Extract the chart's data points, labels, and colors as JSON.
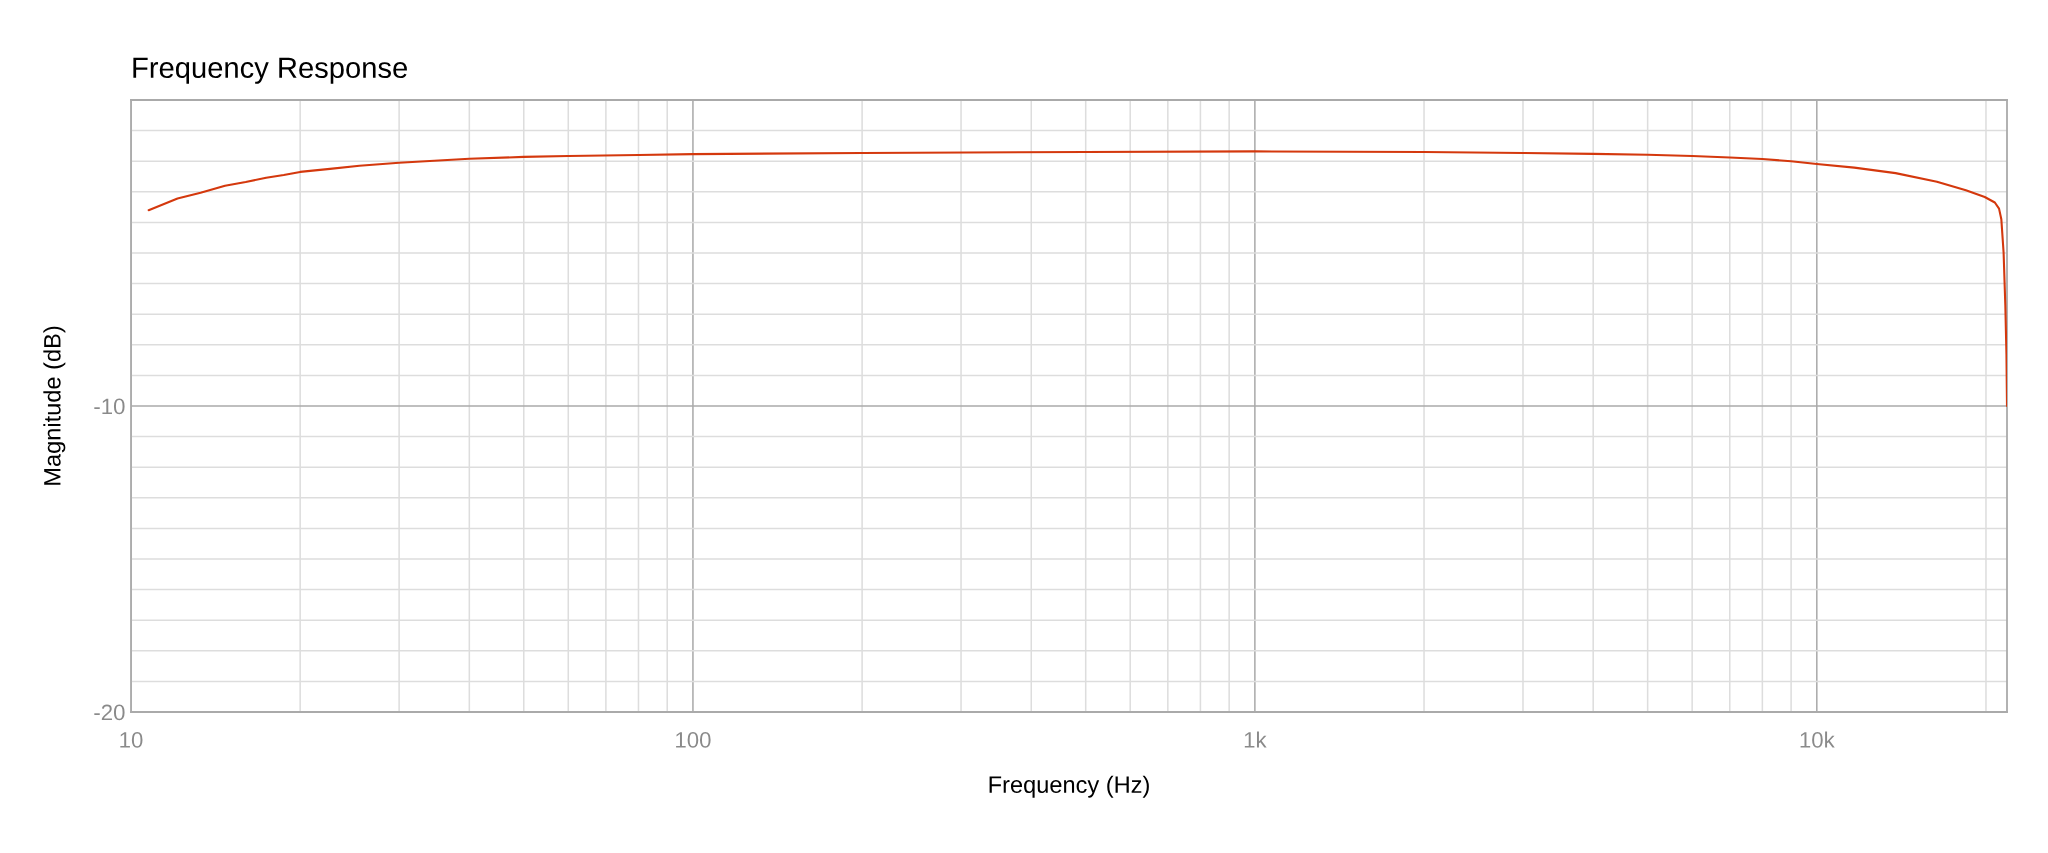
{
  "chart_data": {
    "type": "line",
    "title": "Frequency Response",
    "xlabel": "Frequency (Hz)",
    "ylabel": "Magnitude (dB)",
    "x": [
      10.75,
      12.1,
      13.3,
      14.7,
      16.0,
      17.4,
      18.7,
      20,
      22.6,
      25.5,
      30,
      40,
      50,
      60,
      80,
      100,
      200,
      500,
      1000,
      2000,
      3000,
      4000,
      5000,
      6000,
      7000,
      8000,
      9000,
      10000,
      11660,
      13810,
      16360,
      18420,
      19900,
      20740,
      21100,
      21300,
      21500,
      21650,
      21750,
      21800
    ],
    "series": [
      {
        "color": "#d4380d",
        "values": [
          -3.6,
          -3.22,
          -3.03,
          -2.8,
          -2.68,
          -2.54,
          -2.45,
          -2.35,
          -2.25,
          -2.15,
          -2.05,
          -1.92,
          -1.86,
          -1.83,
          -1.8,
          -1.77,
          -1.73,
          -1.7,
          -1.68,
          -1.7,
          -1.73,
          -1.76,
          -1.79,
          -1.83,
          -1.88,
          -1.93,
          -2.0,
          -2.09,
          -2.21,
          -2.39,
          -2.67,
          -2.95,
          -3.17,
          -3.35,
          -3.55,
          -3.9,
          -5.0,
          -6.7,
          -8.3,
          -10.0
        ]
      }
    ],
    "xlim": [
      10,
      21800
    ],
    "ylim": [
      -20,
      0
    ],
    "xticks": [
      10,
      {
        "value": 20,
        "label": null
      },
      {
        "value": 30,
        "label": null
      },
      {
        "value": 40,
        "label": null
      },
      {
        "value": 50,
        "label": null
      },
      {
        "value": 60,
        "label": null
      },
      {
        "value": 70,
        "label": null
      },
      {
        "value": 80,
        "label": null
      },
      {
        "value": 90,
        "label": null
      },
      100,
      {
        "value": 200,
        "label": null
      },
      {
        "value": 300,
        "label": null
      },
      {
        "value": 400,
        "label": null
      },
      {
        "value": 500,
        "label": null
      },
      {
        "value": 600,
        "label": null
      },
      {
        "value": 700,
        "label": null
      },
      {
        "value": 800,
        "label": null
      },
      {
        "value": 900,
        "label": null
      },
      {
        "value": 1000,
        "label": "1k"
      },
      {
        "value": 2000,
        "label": null
      },
      {
        "value": 3000,
        "label": null
      },
      {
        "value": 4000,
        "label": null
      },
      {
        "value": 5000,
        "label": null
      },
      {
        "value": 6000,
        "label": null
      },
      {
        "value": 7000,
        "label": null
      },
      {
        "value": 8000,
        "label": null
      },
      {
        "value": 9000,
        "label": null
      },
      {
        "value": 10000,
        "label": "10k"
      },
      {
        "value": 20000,
        "label": null
      }
    ],
    "yticks": [
      -20,
      {
        "value": -19,
        "label": null
      },
      {
        "value": -18,
        "label": null
      },
      {
        "value": -17,
        "label": null
      },
      {
        "value": -16,
        "label": null
      },
      {
        "value": -15,
        "label": null
      },
      {
        "value": -14,
        "label": null
      },
      {
        "value": -13,
        "label": null
      },
      {
        "value": -12,
        "label": null
      },
      {
        "value": -11,
        "label": null
      },
      -10,
      {
        "value": -9,
        "label": null
      },
      {
        "value": -8,
        "label": null
      },
      {
        "value": -7,
        "label": null
      },
      {
        "value": -6,
        "label": null
      },
      {
        "value": -5,
        "label": null
      },
      {
        "value": -4,
        "label": null
      },
      {
        "value": -3,
        "label": null
      },
      {
        "value": -2,
        "label": null
      },
      {
        "value": -1,
        "label": null
      }
    ],
    "log": "x",
    "grid": true
  }
}
